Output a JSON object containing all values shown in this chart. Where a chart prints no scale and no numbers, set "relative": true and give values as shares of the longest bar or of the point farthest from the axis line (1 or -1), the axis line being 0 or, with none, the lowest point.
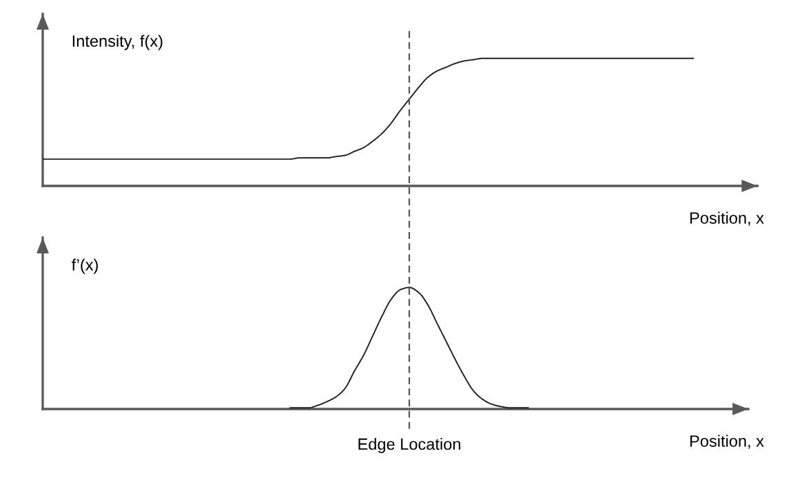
{
  "chart_data": [
    {
      "type": "line",
      "relative": true,
      "ylabel": "Intensity, f(x)",
      "xlabel": "Position, x",
      "categories": [
        null,
        null,
        null,
        null,
        null,
        null,
        null,
        null,
        null,
        null,
        null,
        null,
        null,
        null,
        null,
        null,
        null,
        null,
        null,
        null,
        null,
        null,
        null,
        null,
        null,
        null,
        null,
        null,
        null,
        null,
        null,
        null,
        null,
        null,
        null,
        null,
        null,
        null,
        null,
        null,
        null,
        null,
        null,
        null,
        null,
        null,
        null,
        null,
        null,
        null,
        null,
        null,
        null,
        null,
        null,
        null,
        null,
        null,
        null,
        null,
        null,
        null,
        null,
        null,
        null,
        null,
        null,
        null,
        null,
        null,
        null,
        null,
        null,
        null,
        null,
        null,
        null,
        null,
        null
      ],
      "series": [
        {
          "color": "#222222",
          "values": [
            0.21,
            0.21,
            0.21,
            0.21,
            0.21,
            0.21,
            0.21,
            0.21,
            0.21,
            0.21,
            0.21,
            0.21,
            0.21,
            0.21,
            0.21,
            0.21,
            0.21,
            0.21,
            0.21,
            0.21,
            0.21,
            0.21,
            0.21,
            0.21,
            0.21,
            0.21,
            0.21,
            0.21,
            0.22,
            0.22,
            0.22,
            0.22,
            0.23,
            0.24,
            0.27,
            0.3,
            0.35,
            0.41,
            0.49,
            0.59,
            0.68,
            0.77,
            0.85,
            0.9,
            0.93,
            0.96,
            0.98,
            0.99,
            1,
            1,
            1,
            1,
            1,
            1,
            1,
            1,
            1,
            1,
            1,
            1,
            1,
            1,
            1,
            1,
            1,
            1,
            1,
            1,
            1,
            1,
            1,
            1,
            null,
            null,
            null,
            null,
            null,
            null,
            null
          ]
        }
      ]
    },
    {
      "type": "line",
      "relative": true,
      "ylabel": "f’(x)",
      "xlabel": "Position, x",
      "annotations": [
        "Edge Location"
      ],
      "categories": [
        null,
        null,
        null,
        null,
        null,
        null,
        null,
        null,
        null,
        null,
        null,
        null,
        null,
        null,
        null,
        null,
        null,
        null,
        null,
        null,
        null,
        null,
        null,
        null,
        null,
        null,
        null,
        null,
        null,
        null,
        null,
        null,
        null,
        null,
        null,
        null,
        null,
        null,
        null,
        null,
        null,
        null,
        null,
        null,
        null,
        null,
        null,
        null,
        null,
        null,
        null,
        null,
        null,
        null,
        null,
        null,
        null,
        null,
        null,
        null,
        null,
        null,
        null,
        null,
        null,
        null,
        null,
        null,
        null,
        null,
        null,
        null,
        null,
        null,
        null,
        null,
        null,
        null
      ],
      "series": [
        {
          "color": "#222222",
          "values": [
            null,
            null,
            null,
            null,
            null,
            null,
            null,
            null,
            null,
            null,
            null,
            null,
            null,
            null,
            null,
            null,
            null,
            null,
            null,
            null,
            null,
            null,
            null,
            null,
            null,
            null,
            null,
            0.01,
            0.01,
            0.01,
            0.03,
            0.06,
            0.1,
            0.17,
            0.31,
            0.44,
            0.6,
            0.76,
            0.9,
            0.98,
            1,
            0.96,
            0.86,
            0.71,
            0.56,
            0.41,
            0.27,
            0.15,
            0.08,
            0.04,
            0.02,
            0.01,
            0.01,
            0.01,
            null,
            null,
            null,
            null,
            null,
            null,
            null,
            null,
            null,
            null,
            null,
            null,
            null,
            null,
            null,
            null,
            null,
            null,
            null,
            null,
            null,
            null,
            null,
            null
          ]
        }
      ]
    }
  ]
}
